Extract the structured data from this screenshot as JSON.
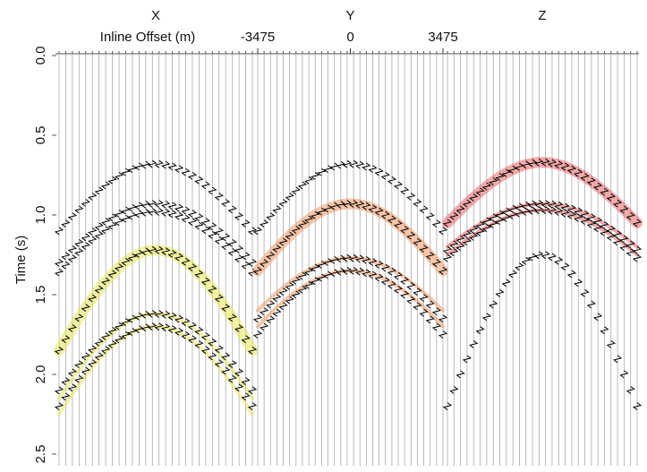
{
  "chart_data": {
    "type": "wiggle",
    "x_label": "Inline Offset (m)",
    "y_label": "Time (s)",
    "xlim": [
      -3475,
      3475
    ],
    "xticks": [
      -3475,
      0,
      3475
    ],
    "ylim": [
      0,
      2.5
    ],
    "yticks": [
      {
        "value": 0,
        "label": "0.0"
      },
      0.5,
      {
        "value": 1,
        "label": "1.0"
      },
      1.5,
      {
        "value": 2,
        "label": "2.0"
      },
      2.5
    ],
    "panels": [
      {
        "title": "X",
        "highlight_color": "#e8e866",
        "events": [
          {
            "t0": 0.68,
            "t_edge": 1.1
          },
          {
            "t0": 0.93,
            "t_edge": 1.3
          },
          {
            "t0": 0.98,
            "t_edge": 1.36
          },
          {
            "t0": 1.22,
            "t_edge": 1.85
          },
          {
            "t0": 1.62,
            "t_edge": 2.1
          },
          {
            "t0": 1.7,
            "t_edge": 2.2
          }
        ],
        "highlights": [
          {
            "t0": 1.22,
            "t_edge": 1.85
          },
          {
            "t0": 1.62,
            "t_edge": 2.15
          },
          {
            "t0": 1.7,
            "t_edge": 2.25
          }
        ]
      },
      {
        "title": "Y",
        "highlight_color": "#f0a070",
        "events": [
          {
            "t0": 0.68,
            "t_edge": 1.1
          },
          {
            "t0": 0.93,
            "t_edge": 1.35
          },
          {
            "t0": 1.27,
            "t_edge": 1.65
          },
          {
            "t0": 1.35,
            "t_edge": 1.75
          }
        ],
        "highlights": [
          {
            "t0": 0.93,
            "t_edge": 1.35
          },
          {
            "t0": 1.27,
            "t_edge": 1.6
          },
          {
            "t0": 1.35,
            "t_edge": 1.7
          }
        ]
      },
      {
        "title": "Z",
        "highlight_color": "#e87070",
        "events": [
          {
            "t0": 0.67,
            "t_edge": 1.05
          },
          {
            "t0": 0.93,
            "t_edge": 1.22
          },
          {
            "t0": 0.97,
            "t_edge": 1.27
          },
          {
            "t0": 1.25,
            "t_edge": 2.2
          }
        ],
        "highlights": [
          {
            "t0": 0.67,
            "t_edge": 1.05
          },
          {
            "t0": 0.93,
            "t_edge": 1.2
          },
          {
            "t0": 0.97,
            "t_edge": 1.25
          }
        ]
      }
    ]
  }
}
